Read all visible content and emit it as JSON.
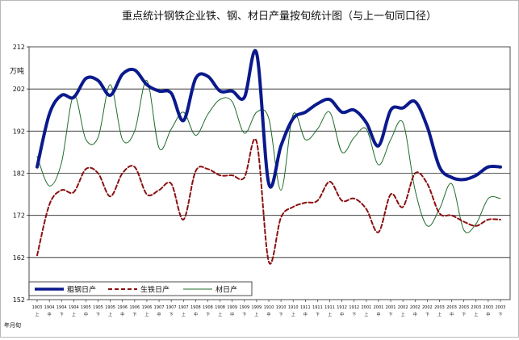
{
  "chart_data": {
    "type": "line",
    "title": "重点统计钢铁企业铁、钢、材日产量按旬统计图（与上一旬同口径）",
    "ylabel": "万吨",
    "xlabel": "年月旬",
    "ylim": [
      152,
      212
    ],
    "yticks": [
      152,
      162,
      172,
      182,
      192,
      202,
      212
    ],
    "grid": true,
    "legend_position": "bottom-left",
    "categories": [
      {
        "ym": "1903",
        "xun": "上"
      },
      {
        "ym": "1904",
        "xun": "中"
      },
      {
        "ym": "1904",
        "xun": "下"
      },
      {
        "ym": "1904",
        "xun": "上"
      },
      {
        "ym": "1905",
        "xun": "中"
      },
      {
        "ym": "1905",
        "xun": "下"
      },
      {
        "ym": "1905",
        "xun": "上"
      },
      {
        "ym": "1906",
        "xun": "中"
      },
      {
        "ym": "1906",
        "xun": "下"
      },
      {
        "ym": "1906",
        "xun": "上"
      },
      {
        "ym": "1907",
        "xun": "中"
      },
      {
        "ym": "1907",
        "xun": "下"
      },
      {
        "ym": "1907",
        "xun": "上"
      },
      {
        "ym": "1908",
        "xun": "中"
      },
      {
        "ym": "1908",
        "xun": "下"
      },
      {
        "ym": "1908",
        "xun": "上"
      },
      {
        "ym": "1909",
        "xun": "中"
      },
      {
        "ym": "1909",
        "xun": "下"
      },
      {
        "ym": "1909",
        "xun": "上"
      },
      {
        "ym": "1910",
        "xun": "中"
      },
      {
        "ym": "1910",
        "xun": "下"
      },
      {
        "ym": "1910",
        "xun": "上"
      },
      {
        "ym": "1911",
        "xun": "中"
      },
      {
        "ym": "1911",
        "xun": "下"
      },
      {
        "ym": "1911",
        "xun": "上"
      },
      {
        "ym": "1912",
        "xun": "中"
      },
      {
        "ym": "1912",
        "xun": "下"
      },
      {
        "ym": "2001",
        "xun": "上"
      },
      {
        "ym": "2001",
        "xun": "中"
      },
      {
        "ym": "2001",
        "xun": "下"
      },
      {
        "ym": "2002",
        "xun": "上"
      },
      {
        "ym": "2002",
        "xun": "中"
      },
      {
        "ym": "2002",
        "xun": "下"
      },
      {
        "ym": "2003",
        "xun": "上"
      },
      {
        "ym": "2003",
        "xun": "中"
      },
      {
        "ym": "2003",
        "xun": "下"
      },
      {
        "ym": "2003",
        "xun": "上"
      },
      {
        "ym": "2003",
        "xun": "中"
      },
      {
        "ym": "2003",
        "xun": "下"
      }
    ],
    "series": [
      {
        "name": "粗钢日产",
        "color": "#0a1a8c",
        "style": "solid-thick",
        "values": [
          183.5,
          196,
          200.5,
          200,
          204.5,
          204,
          200.5,
          205.5,
          206.5,
          203,
          201.5,
          201,
          194.5,
          204.5,
          205,
          201.5,
          201.5,
          200,
          210.5,
          179.5,
          188.5,
          195,
          196.5,
          198.5,
          199.5,
          196.5,
          197,
          194,
          188.5,
          197,
          197.5,
          199,
          193,
          183.5,
          181,
          180.5,
          181.5,
          183.5,
          183.5
        ]
      },
      {
        "name": "生铁日产",
        "color": "#8b1010",
        "style": "dashed",
        "values": [
          162.5,
          174.5,
          178,
          177.5,
          183,
          182,
          176.5,
          182,
          183.5,
          177,
          178,
          179.5,
          171,
          182.5,
          183,
          181.5,
          181.5,
          181,
          189.5,
          161,
          171.5,
          174,
          175,
          175.5,
          180,
          175.5,
          176,
          173.5,
          168,
          177,
          174,
          182,
          179.5,
          172.5,
          172,
          170.5,
          169.5,
          171,
          171
        ]
      },
      {
        "name": "材日产",
        "color": "#1f6b2a",
        "style": "solid-thin",
        "values": [
          186,
          179,
          184.5,
          200.5,
          190,
          190.5,
          203,
          190,
          192,
          204,
          188,
          192.5,
          196.5,
          191,
          196,
          199.5,
          199,
          191.5,
          196.5,
          195,
          178,
          196,
          190,
          192.5,
          196.5,
          187,
          190.5,
          192.5,
          184,
          190,
          194,
          178,
          169.5,
          173.5,
          179.5,
          168.5,
          170,
          176,
          176
        ]
      }
    ]
  }
}
